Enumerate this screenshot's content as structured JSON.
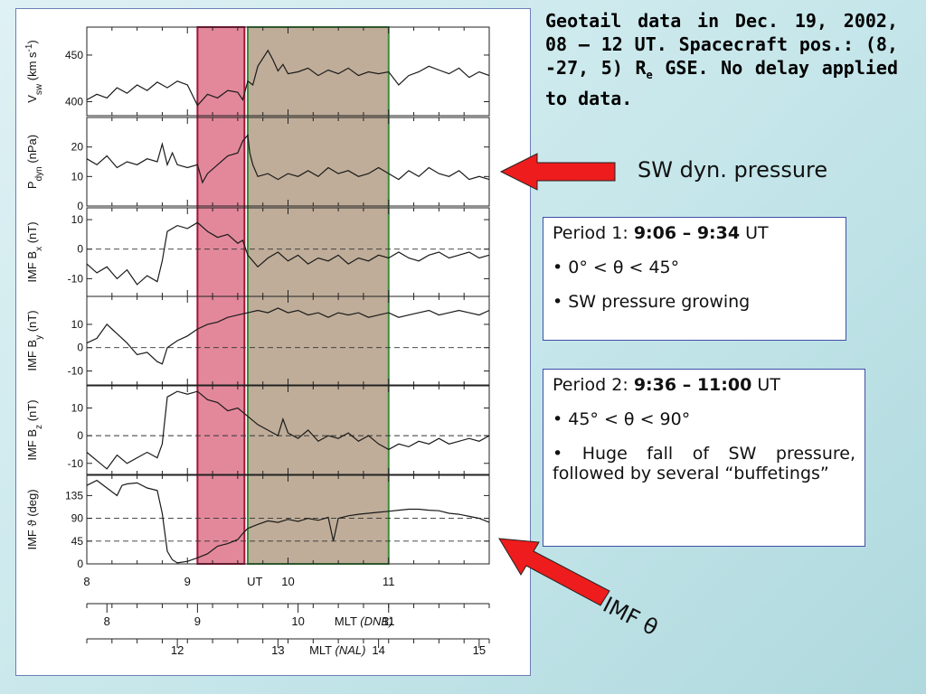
{
  "title": {
    "line1": "Geotail data in Dec. 19, 2002, 08 – 12 UT. Spacecraft pos.: (8, -27, 5) R",
    "sub": "e",
    "line2": " GSE. No delay applied to data."
  },
  "callouts": {
    "sw_pressure": "SW dyn. pressure",
    "imf_theta": "IMF θ"
  },
  "period1": {
    "prefix": "Period 1: ",
    "time": "9:06 – 9:34",
    "suffix": " UT",
    "bullet1": "• 0° <  θ  < 45°",
    "bullet2": "• SW pressure growing"
  },
  "period2": {
    "prefix": "Period 2: ",
    "time": "9:36 – 11:00",
    "suffix": " UT",
    "bullet1": "• 45° <  θ  < 90°",
    "bullet2": "• Huge fall of SW pressure, followed by several “buffetings”"
  },
  "colors": {
    "period1_fill": "#d9607a",
    "period1_border": "#a0143c",
    "period2_fill": "#8a6a45",
    "period2_border": "#3c8c3c",
    "arrow": "#ee1c1c"
  },
  "chart_data": {
    "type": "line",
    "x_unit": "UT hours",
    "xlim": [
      8.0,
      12.0
    ],
    "shaded_periods": [
      {
        "name": "Period 1",
        "start": 9.1,
        "end": 9.567
      },
      {
        "name": "Period 2",
        "start": 9.6,
        "end": 11.0
      }
    ],
    "axes": {
      "ut": {
        "label": "UT",
        "ticks": [
          {
            "v": 8,
            "t": "8"
          },
          {
            "v": 9,
            "t": "9"
          },
          {
            "v": 10,
            "t": "10"
          },
          {
            "v": 11,
            "t": "11"
          }
        ],
        "label_at": 9.67
      },
      "mlt_dnb": {
        "label": "MLT",
        "sublabel": "(DNB)",
        "ticks": [
          {
            "v": 8.2,
            "t": "8"
          },
          {
            "v": 9.1,
            "t": "9"
          },
          {
            "v": 10.1,
            "t": "10"
          },
          {
            "v": 11.0,
            "t": "11"
          }
        ],
        "label_at": 10.3
      },
      "mlt_nal": {
        "label": "MLT",
        "sublabel": "(NAL)",
        "ticks": [
          {
            "v": 8.9,
            "t": "12"
          },
          {
            "v": 9.9,
            "t": "13"
          },
          {
            "v": 10.9,
            "t": "14"
          },
          {
            "v": 11.9,
            "t": "15"
          }
        ],
        "label_at": 10.05
      }
    },
    "panels": [
      {
        "ylabel_main": "V",
        "ylabel_sub": "sw",
        "ylabel_unit": " (km s",
        "ylabel_sup": "-1",
        "ylabel_end": ")",
        "ylim": [
          385,
          480
        ],
        "ticks": [
          {
            "v": 400,
            "t": "400"
          },
          {
            "v": 450,
            "t": "450"
          }
        ],
        "dashed": [],
        "x": [
          8.0,
          8.1,
          8.2,
          8.3,
          8.4,
          8.5,
          8.6,
          8.7,
          8.8,
          8.9,
          9.0,
          9.1,
          9.2,
          9.3,
          9.4,
          9.5,
          9.55,
          9.6,
          9.65,
          9.7,
          9.8,
          9.85,
          9.9,
          9.95,
          10.0,
          10.1,
          10.2,
          10.3,
          10.4,
          10.5,
          10.6,
          10.7,
          10.8,
          10.9,
          11.0,
          11.1,
          11.2,
          11.3,
          11.4,
          11.5,
          11.6,
          11.7,
          11.8,
          11.9,
          12.0
        ],
        "y": [
          402,
          408,
          404,
          415,
          409,
          418,
          412,
          421,
          415,
          422,
          418,
          396,
          408,
          404,
          412,
          410,
          402,
          422,
          418,
          438,
          455,
          445,
          433,
          440,
          430,
          432,
          436,
          428,
          434,
          430,
          436,
          428,
          432,
          430,
          432,
          418,
          428,
          432,
          438,
          434,
          430,
          436,
          426,
          432,
          428
        ]
      },
      {
        "ylabel_main": "P",
        "ylabel_sub": "dyn",
        "ylabel_unit": " (nPa)",
        "ylabel_sup": "",
        "ylabel_end": "",
        "ylim": [
          0,
          30
        ],
        "ticks": [
          {
            "v": 0,
            "t": "0"
          },
          {
            "v": 10,
            "t": "10"
          },
          {
            "v": 20,
            "t": "20"
          }
        ],
        "dashed": [],
        "x": [
          8.0,
          8.1,
          8.2,
          8.3,
          8.4,
          8.5,
          8.6,
          8.7,
          8.75,
          8.8,
          8.85,
          8.9,
          9.0,
          9.1,
          9.15,
          9.2,
          9.3,
          9.4,
          9.5,
          9.55,
          9.6,
          9.62,
          9.65,
          9.7,
          9.8,
          9.9,
          10.0,
          10.1,
          10.2,
          10.3,
          10.4,
          10.5,
          10.6,
          10.7,
          10.8,
          10.9,
          11.0,
          11.1,
          11.2,
          11.3,
          11.4,
          11.5,
          11.6,
          11.7,
          11.8,
          11.9,
          12.0
        ],
        "y": [
          16,
          14,
          17,
          13,
          15,
          14,
          16,
          15,
          21,
          14,
          18,
          14,
          13,
          14,
          8,
          11,
          14,
          17,
          18,
          22,
          24,
          18,
          14,
          10,
          11,
          9,
          11,
          10,
          12,
          10,
          13,
          11,
          12,
          10,
          11,
          13,
          11,
          9,
          12,
          10,
          13,
          11,
          10,
          12,
          9,
          10,
          9
        ]
      },
      {
        "ylabel_main": "IMF B",
        "ylabel_sub": "x",
        "ylabel_unit": " (nT)",
        "ylabel_sup": "",
        "ylabel_end": "",
        "ylim": [
          -16,
          14
        ],
        "ticks": [
          {
            "v": -10,
            "t": "-10"
          },
          {
            "v": 0,
            "t": "0"
          },
          {
            "v": 10,
            "t": "10"
          }
        ],
        "dashed": [
          0
        ],
        "x": [
          8.0,
          8.1,
          8.2,
          8.3,
          8.4,
          8.5,
          8.6,
          8.7,
          8.75,
          8.8,
          8.9,
          9.0,
          9.1,
          9.2,
          9.3,
          9.4,
          9.5,
          9.55,
          9.6,
          9.7,
          9.8,
          9.9,
          10.0,
          10.1,
          10.2,
          10.3,
          10.4,
          10.5,
          10.6,
          10.7,
          10.8,
          10.9,
          11.0,
          11.1,
          11.2,
          11.3,
          11.4,
          11.5,
          11.6,
          11.7,
          11.8,
          11.9,
          12.0
        ],
        "y": [
          -5,
          -8,
          -6,
          -10,
          -7,
          -12,
          -9,
          -11,
          -4,
          6,
          8,
          7,
          9,
          6,
          4,
          5,
          2,
          3,
          -2,
          -6,
          -3,
          -1,
          -4,
          -2,
          -5,
          -3,
          -4,
          -2,
          -5,
          -3,
          -4,
          -2,
          -3,
          -1,
          -3,
          -4,
          -2,
          -1,
          -3,
          -2,
          -1,
          -3,
          -2
        ]
      },
      {
        "ylabel_main": "IMF B",
        "ylabel_sub": "y",
        "ylabel_unit": " (nT)",
        "ylabel_sup": "",
        "ylabel_end": "",
        "ylim": [
          -16,
          22
        ],
        "ticks": [
          {
            "v": -10,
            "t": "-10"
          },
          {
            "v": 0,
            "t": "0"
          },
          {
            "v": 10,
            "t": "10"
          }
        ],
        "dashed": [
          0
        ],
        "x": [
          8.0,
          8.1,
          8.2,
          8.3,
          8.4,
          8.5,
          8.6,
          8.7,
          8.75,
          8.8,
          8.9,
          9.0,
          9.1,
          9.2,
          9.3,
          9.4,
          9.5,
          9.6,
          9.7,
          9.8,
          9.9,
          10.0,
          10.1,
          10.2,
          10.3,
          10.4,
          10.5,
          10.6,
          10.7,
          10.8,
          10.9,
          11.0,
          11.1,
          11.2,
          11.3,
          11.4,
          11.5,
          11.6,
          11.7,
          11.8,
          11.9,
          12.0
        ],
        "y": [
          2,
          4,
          10,
          6,
          2,
          -3,
          -2,
          -6,
          -7,
          0,
          3,
          5,
          8,
          10,
          11,
          13,
          14,
          15,
          16,
          15,
          17,
          15,
          16,
          14,
          15,
          13,
          15,
          14,
          15,
          13,
          14,
          15,
          13,
          14,
          15,
          16,
          14,
          15,
          16,
          15,
          14,
          16
        ]
      },
      {
        "ylabel_main": "IMF B",
        "ylabel_sub": "z",
        "ylabel_unit": " (nT)",
        "ylabel_sup": "",
        "ylabel_end": "",
        "ylim": [
          -14,
          18
        ],
        "ticks": [
          {
            "v": -10,
            "t": "-10"
          },
          {
            "v": 0,
            "t": "0"
          },
          {
            "v": 10,
            "t": "10"
          }
        ],
        "dashed": [
          0
        ],
        "x": [
          8.0,
          8.1,
          8.2,
          8.3,
          8.4,
          8.5,
          8.6,
          8.7,
          8.75,
          8.8,
          8.9,
          9.0,
          9.1,
          9.2,
          9.3,
          9.4,
          9.5,
          9.6,
          9.7,
          9.8,
          9.9,
          9.95,
          10.0,
          10.1,
          10.2,
          10.3,
          10.4,
          10.5,
          10.6,
          10.7,
          10.8,
          10.9,
          11.0,
          11.1,
          11.2,
          11.3,
          11.4,
          11.5,
          11.6,
          11.7,
          11.8,
          11.9,
          12.0
        ],
        "y": [
          -6,
          -9,
          -12,
          -7,
          -10,
          -8,
          -6,
          -8,
          -3,
          14,
          16,
          15,
          16,
          13,
          12,
          9,
          10,
          7,
          4,
          2,
          0,
          6,
          1,
          -1,
          2,
          -2,
          0,
          -1,
          1,
          -2,
          0,
          -3,
          -5,
          -3,
          -4,
          -2,
          -3,
          -1,
          -3,
          -2,
          -1,
          -2,
          0
        ]
      },
      {
        "ylabel_main": "IMF ",
        "ylabel_sub": "",
        "ylabel_unit": "ϑ (deg)",
        "ylabel_sup": "",
        "ylabel_end": "",
        "ylim": [
          0,
          175
        ],
        "ticks": [
          {
            "v": 0,
            "t": "0"
          },
          {
            "v": 45,
            "t": "45"
          },
          {
            "v": 90,
            "t": "90"
          },
          {
            "v": 135,
            "t": "135"
          }
        ],
        "dashed": [
          45,
          90
        ],
        "x": [
          8.0,
          8.1,
          8.2,
          8.3,
          8.35,
          8.4,
          8.5,
          8.6,
          8.7,
          8.75,
          8.8,
          8.85,
          8.9,
          9.0,
          9.1,
          9.2,
          9.3,
          9.4,
          9.5,
          9.55,
          9.6,
          9.7,
          9.8,
          9.9,
          10.0,
          10.1,
          10.2,
          10.3,
          10.4,
          10.45,
          10.5,
          10.6,
          10.7,
          10.8,
          10.9,
          11.0,
          11.1,
          11.2,
          11.3,
          11.4,
          11.5,
          11.6,
          11.7,
          11.8,
          11.9,
          12.0
        ],
        "y": [
          155,
          165,
          150,
          135,
          155,
          158,
          160,
          150,
          145,
          100,
          25,
          8,
          2,
          5,
          12,
          20,
          35,
          40,
          48,
          60,
          70,
          78,
          85,
          82,
          88,
          84,
          90,
          86,
          92,
          45,
          90,
          95,
          98,
          100,
          102,
          104,
          106,
          108,
          108,
          106,
          105,
          100,
          98,
          94,
          90,
          82
        ]
      }
    ]
  }
}
